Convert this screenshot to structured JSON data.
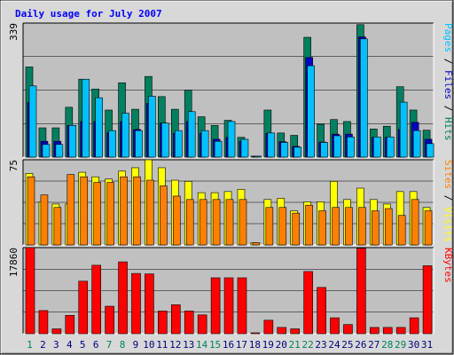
{
  "chart_data": {
    "type": "bar",
    "title": "Daily usage for July 2007",
    "categories": [
      "1",
      "2",
      "3",
      "4",
      "5",
      "6",
      "7",
      "8",
      "9",
      "10",
      "11",
      "12",
      "13",
      "14",
      "15",
      "16",
      "17",
      "18",
      "19",
      "20",
      "21",
      "22",
      "23",
      "24",
      "25",
      "26",
      "27",
      "28",
      "29",
      "30",
      "31"
    ],
    "weekend_days": [
      "1",
      "7",
      "8",
      "14",
      "15",
      "21",
      "22",
      "28",
      "29"
    ],
    "panels": [
      {
        "id": "hits",
        "ymax": 339,
        "ymax_label": "339",
        "legend": [
          {
            "text": "Pages",
            "color": "#00C0FF"
          },
          {
            "text": " / ",
            "color": "#000000"
          },
          {
            "text": "Files",
            "color": "#0000C0"
          },
          {
            "text": " / ",
            "color": "#000000"
          },
          {
            "text": "Hits",
            "color": "#008060"
          }
        ],
        "series": [
          {
            "name": "Hits",
            "color": "#008060",
            "values": [
              228,
              74,
              74,
              126,
              197,
              172,
              119,
              188,
              121,
              204,
              153,
              121,
              169,
              102,
              80,
              93,
              50,
              2,
              119,
              61,
              55,
              303,
              83,
              95,
              90,
              335,
              71,
              78,
              178,
              119,
              68
            ]
          },
          {
            "name": "Files",
            "color": "#0000C0",
            "values": [
              138,
              40,
              40,
              80,
              90,
              90,
              62,
              90,
              70,
              136,
              86,
              60,
              90,
              60,
              45,
              50,
              40,
              2,
              60,
              39,
              27,
              252,
              38,
              58,
              58,
              304,
              50,
              50,
              70,
              88,
              45
            ]
          },
          {
            "name": "Pages",
            "color": "#00C0FF",
            "values": [
              180,
              32,
              32,
              80,
              197,
              150,
              67,
              111,
              67,
              154,
              86,
              67,
              115,
              67,
              40,
              90,
              45,
              2,
              61,
              37,
              25,
              231,
              37,
              54,
              51,
              299,
              51,
              51,
              139,
              67,
              34
            ]
          }
        ]
      },
      {
        "id": "visits",
        "ymax": 75,
        "ymax_label": "75",
        "legend": [
          {
            "text": "Sites",
            "color": "#FF8000"
          },
          {
            "text": " / ",
            "color": "#000000"
          },
          {
            "text": "Visits",
            "color": "#FFFF00"
          }
        ],
        "series": [
          {
            "name": "Visits",
            "color": "#FFFF00",
            "values": [
              63,
              38,
              36,
              36,
              64,
              60,
              58,
              65,
              68,
              75,
              68,
              57,
              56,
              46,
              46,
              47,
              49,
              2,
              40,
              41,
              30,
              38,
              38,
              56,
              40,
              50,
              40,
              36,
              47,
              47,
              33
            ]
          },
          {
            "name": "Sites",
            "color": "#FF8000",
            "values": [
              60,
              44,
              33,
              62,
              60,
              55,
              55,
              60,
              60,
              57,
              52,
              43,
              40,
              40,
              40,
              40,
              40,
              2,
              33,
              33,
              28,
              35,
              30,
              33,
              33,
              33,
              30,
              32,
              26,
              40,
              30
            ]
          }
        ]
      },
      {
        "id": "kbytes",
        "ymax": 17860,
        "ymax_label": "17860",
        "legend": [
          {
            "text": "KBytes",
            "color": "#FF0000"
          }
        ],
        "series": [
          {
            "name": "KBytes",
            "color": "#FF0000",
            "values": [
              17860,
              4800,
              1000,
              3800,
              10900,
              14200,
              5700,
              14900,
              12500,
              12400,
              4700,
              6000,
              4700,
              3900,
              11600,
              11600,
              11600,
              100,
              2800,
              1300,
              1000,
              12900,
              9600,
              3300,
              1900,
              17700,
              1300,
              1300,
              1300,
              3300,
              14100
            ]
          }
        ]
      }
    ],
    "colors": {
      "background": "#C0C0C0",
      "frame": "#D8D8D8",
      "title": "#0000FF",
      "weekday_label": "#000080",
      "weekend_label": "#008060"
    }
  }
}
